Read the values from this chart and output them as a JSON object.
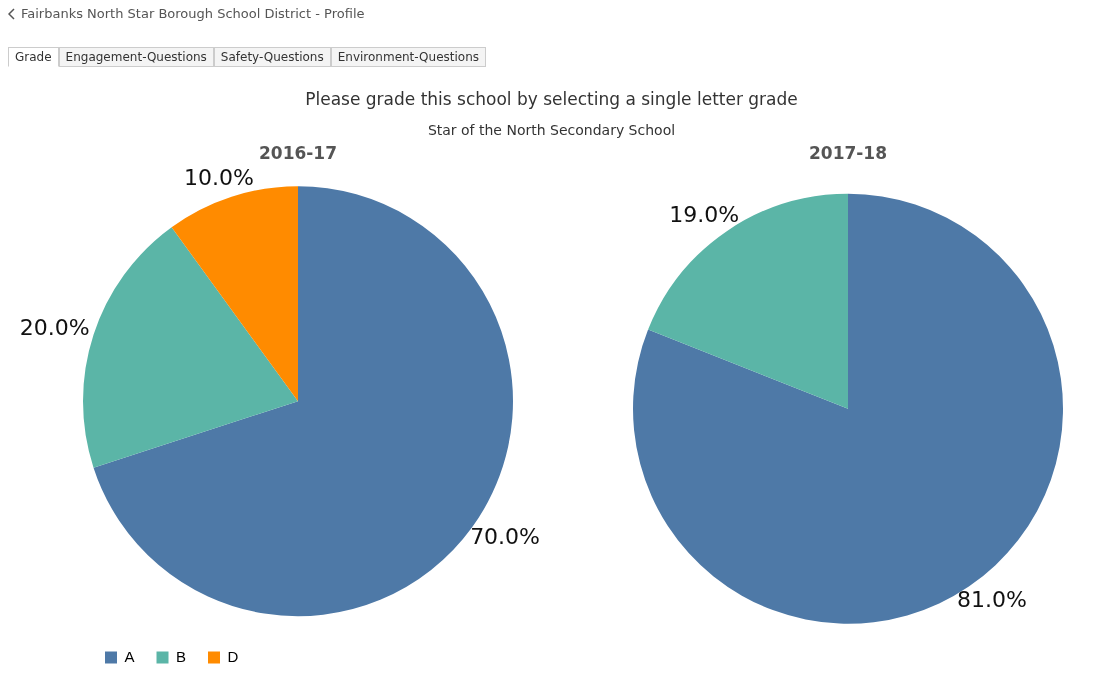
{
  "chart_data": [
    {
      "type": "pie",
      "title": "2016-17",
      "categories": [
        "A",
        "B",
        "D"
      ],
      "values": [
        70,
        20,
        10
      ],
      "colors": [
        "#4e79a7",
        "#5bb5a7",
        "#ff8b00"
      ],
      "value_labels": [
        "70.0%",
        "20.0%",
        "10.0%"
      ],
      "legend": "bottom",
      "annotations": [
        "Fairbanks North Star Borough School District - Profile",
        "Grade",
        "Engagement-Questions",
        "Safety-Questions",
        "Environment-Questions",
        "Please grade this school by selecting a single letter grade",
        "Star of the North Secondary School"
      ]
    },
    {
      "type": "pie",
      "title": "2017-18",
      "categories": [
        null,
        null
      ],
      "values": [
        81,
        19
      ],
      "colors": [
        "#4e79a7",
        "#5bb5a7"
      ],
      "value_labels": [
        "81.0%",
        "19.0%"
      ]
    }
  ]
}
